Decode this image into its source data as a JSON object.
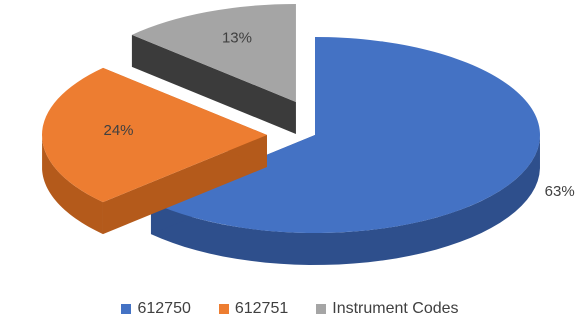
{
  "chart_data": {
    "type": "pie",
    "style": "3d-exploded",
    "categories": [
      "612750",
      "612751",
      "Instrument Codes"
    ],
    "values": [
      63,
      24,
      13
    ],
    "data_labels": [
      "63%",
      "24%",
      "13%"
    ],
    "colors": [
      "#4472c4",
      "#ed7d31",
      "#a5a5a5"
    ],
    "side_colors": [
      "#2e4f8c",
      "#b45a1b",
      "#3b3b3b"
    ],
    "legend_position": "bottom"
  },
  "legend": {
    "items": [
      {
        "label": "612750",
        "color": "#4472c4"
      },
      {
        "label": "612751",
        "color": "#ed7d31"
      },
      {
        "label": "Instrument Codes",
        "color": "#a5a5a5"
      }
    ]
  }
}
